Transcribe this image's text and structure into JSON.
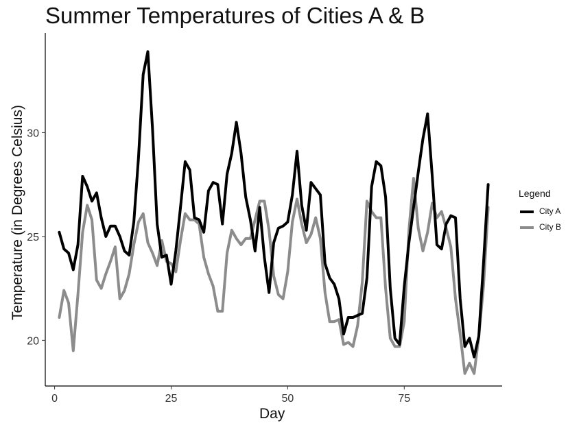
{
  "chart_data": {
    "type": "line",
    "title": "Summer Temperatures of Cities A & B",
    "xlabel": "Day",
    "ylabel": "Temperature (in Degrees Celsius)",
    "xlim": [
      -2,
      96
    ],
    "ylim": [
      17.8,
      34.8
    ],
    "xticks": [
      0,
      25,
      50,
      75
    ],
    "yticks": [
      20,
      25,
      30
    ],
    "grid": false,
    "legend": {
      "title": "Legend",
      "position": "right"
    },
    "x": [
      1,
      2,
      3,
      4,
      5,
      6,
      7,
      8,
      9,
      10,
      11,
      12,
      13,
      14,
      15,
      16,
      17,
      18,
      19,
      20,
      21,
      22,
      23,
      24,
      25,
      26,
      27,
      28,
      29,
      30,
      31,
      32,
      33,
      34,
      35,
      36,
      37,
      38,
      39,
      40,
      41,
      42,
      43,
      44,
      45,
      46,
      47,
      48,
      49,
      50,
      51,
      52,
      53,
      54,
      55,
      56,
      57,
      58,
      59,
      60,
      61,
      62,
      63,
      64,
      65,
      66,
      67,
      68,
      69,
      70,
      71,
      72,
      73,
      74,
      75,
      76,
      77,
      78,
      79,
      80,
      81,
      82,
      83,
      84,
      85,
      86,
      87,
      88,
      89,
      90,
      91,
      92,
      93
    ],
    "series": [
      {
        "name": "City A",
        "color": "#000000",
        "values": [
          25.2,
          24.4,
          24.2,
          23.4,
          24.6,
          27.9,
          27.4,
          26.7,
          27.1,
          25.9,
          25.0,
          25.5,
          25.5,
          25.0,
          24.3,
          24.1,
          25.7,
          28.8,
          32.8,
          33.9,
          30.2,
          25.6,
          24.0,
          24.1,
          22.7,
          24.3,
          26.4,
          28.6,
          28.2,
          25.9,
          25.8,
          25.2,
          27.2,
          27.6,
          27.5,
          25.6,
          28.0,
          29.0,
          30.5,
          29.0,
          26.9,
          25.8,
          24.3,
          26.4,
          24.0,
          22.3,
          24.7,
          25.4,
          25.5,
          25.7,
          27.0,
          29.1,
          26.5,
          25.3,
          27.6,
          27.3,
          27.0,
          23.7,
          23.0,
          22.7,
          22.0,
          20.3,
          21.1,
          21.1,
          21.2,
          21.3,
          23.0,
          27.4,
          28.6,
          28.4,
          26.9,
          22.5,
          20.1,
          19.8,
          22.6,
          24.7,
          26.4,
          28.1,
          29.7,
          30.9,
          27.9,
          24.6,
          24.4,
          25.6,
          26.0,
          25.9,
          22.0,
          19.7,
          20.1,
          19.2,
          20.2,
          23.7,
          27.5
        ]
      },
      {
        "name": "City B",
        "color": "#8c8c8c",
        "values": [
          21.1,
          22.4,
          21.8,
          19.5,
          22.2,
          25.2,
          26.5,
          25.8,
          22.9,
          22.5,
          23.2,
          23.8,
          24.5,
          22.0,
          22.4,
          23.2,
          24.6,
          25.7,
          26.1,
          24.7,
          24.2,
          23.6,
          24.8,
          23.8,
          23.7,
          23.3,
          24.8,
          26.1,
          25.8,
          25.8,
          25.6,
          24.0,
          23.2,
          22.6,
          21.4,
          21.4,
          24.2,
          25.3,
          24.9,
          24.6,
          24.9,
          24.9,
          25.8,
          26.7,
          26.7,
          25.3,
          23.1,
          22.2,
          22.0,
          23.3,
          25.7,
          26.8,
          25.6,
          24.7,
          25.1,
          25.9,
          24.9,
          22.3,
          20.9,
          20.9,
          21.0,
          19.8,
          19.9,
          19.7,
          20.7,
          22.8,
          26.7,
          26.2,
          25.9,
          25.9,
          22.5,
          20.1,
          19.7,
          19.7,
          20.9,
          25.3,
          27.8,
          25.4,
          24.3,
          25.2,
          26.6,
          25.9,
          26.2,
          25.4,
          24.5,
          22.0,
          20.3,
          18.4,
          18.9,
          18.4,
          20.2,
          22.6,
          26.4
        ]
      }
    ]
  }
}
